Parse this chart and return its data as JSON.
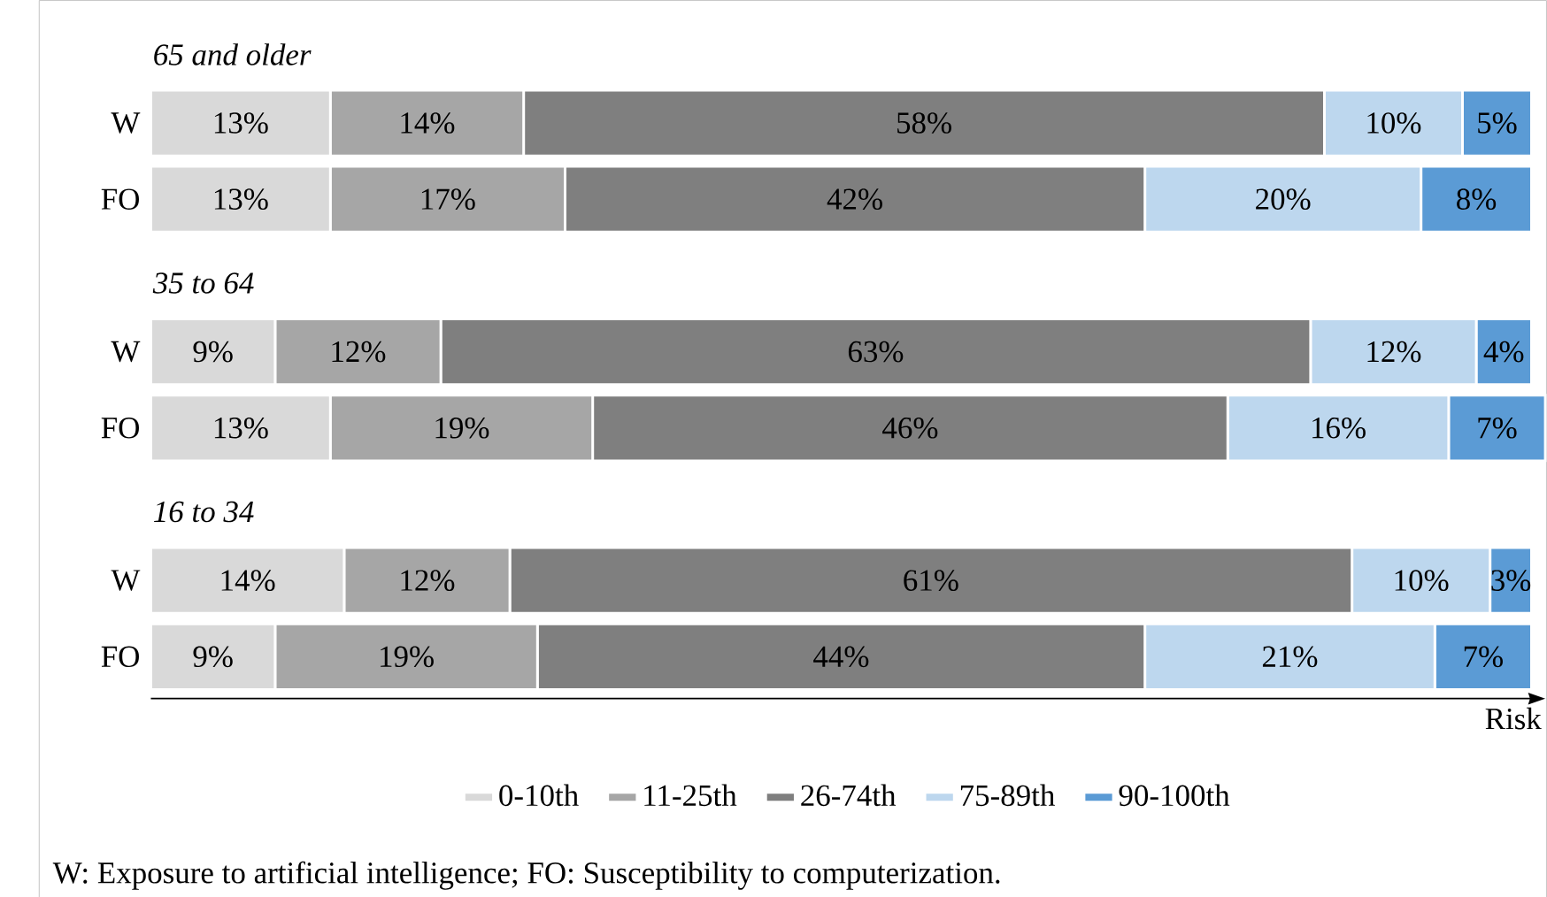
{
  "chart_data": {
    "type": "bar",
    "orientation": "horizontal",
    "stacked": true,
    "categories": [
      "W",
      "FO",
      "W",
      "FO",
      "W",
      "FO"
    ],
    "series": [
      {
        "name": "0-10th",
        "color": "#d9d9d9",
        "values": [
          13,
          13,
          9,
          13,
          14,
          9
        ],
        "value_labels": [
          "13%",
          "13%",
          "9%",
          "13%",
          "14%",
          "9%"
        ]
      },
      {
        "name": "11-25th",
        "color": "#a6a6a6",
        "values": [
          14,
          17,
          12,
          19,
          12,
          19
        ],
        "value_labels": [
          "14%",
          "17%",
          "12%",
          "19%",
          "12%",
          "19%"
        ]
      },
      {
        "name": "26-74th",
        "color": "#7f7f7f",
        "values": [
          58,
          42,
          63,
          46,
          61,
          44
        ],
        "value_labels": [
          "58%",
          "42%",
          "63%",
          "46%",
          "61%",
          "44%"
        ]
      },
      {
        "name": "75-89th",
        "color": "#bdd7ee",
        "values": [
          10,
          20,
          12,
          16,
          10,
          21
        ],
        "value_labels": [
          "10%",
          "20%",
          "12%",
          "16%",
          "10%",
          "21%"
        ]
      },
      {
        "name": "90-100th",
        "color": "#5b9bd5",
        "values": [
          5,
          8,
          4,
          7,
          3,
          7
        ],
        "value_labels": [
          "5%",
          "8%",
          "4%",
          "7%",
          "3%",
          "7%"
        ]
      }
    ],
    "xlabel": "Risk",
    "legend": "bottom",
    "tick_labels": "y",
    "annotations": [
      "65 and older",
      "35 to 64",
      "16 to 34",
      "W: Exposure to artificial intelligence; FO: Susceptibility to computerization."
    ]
  }
}
